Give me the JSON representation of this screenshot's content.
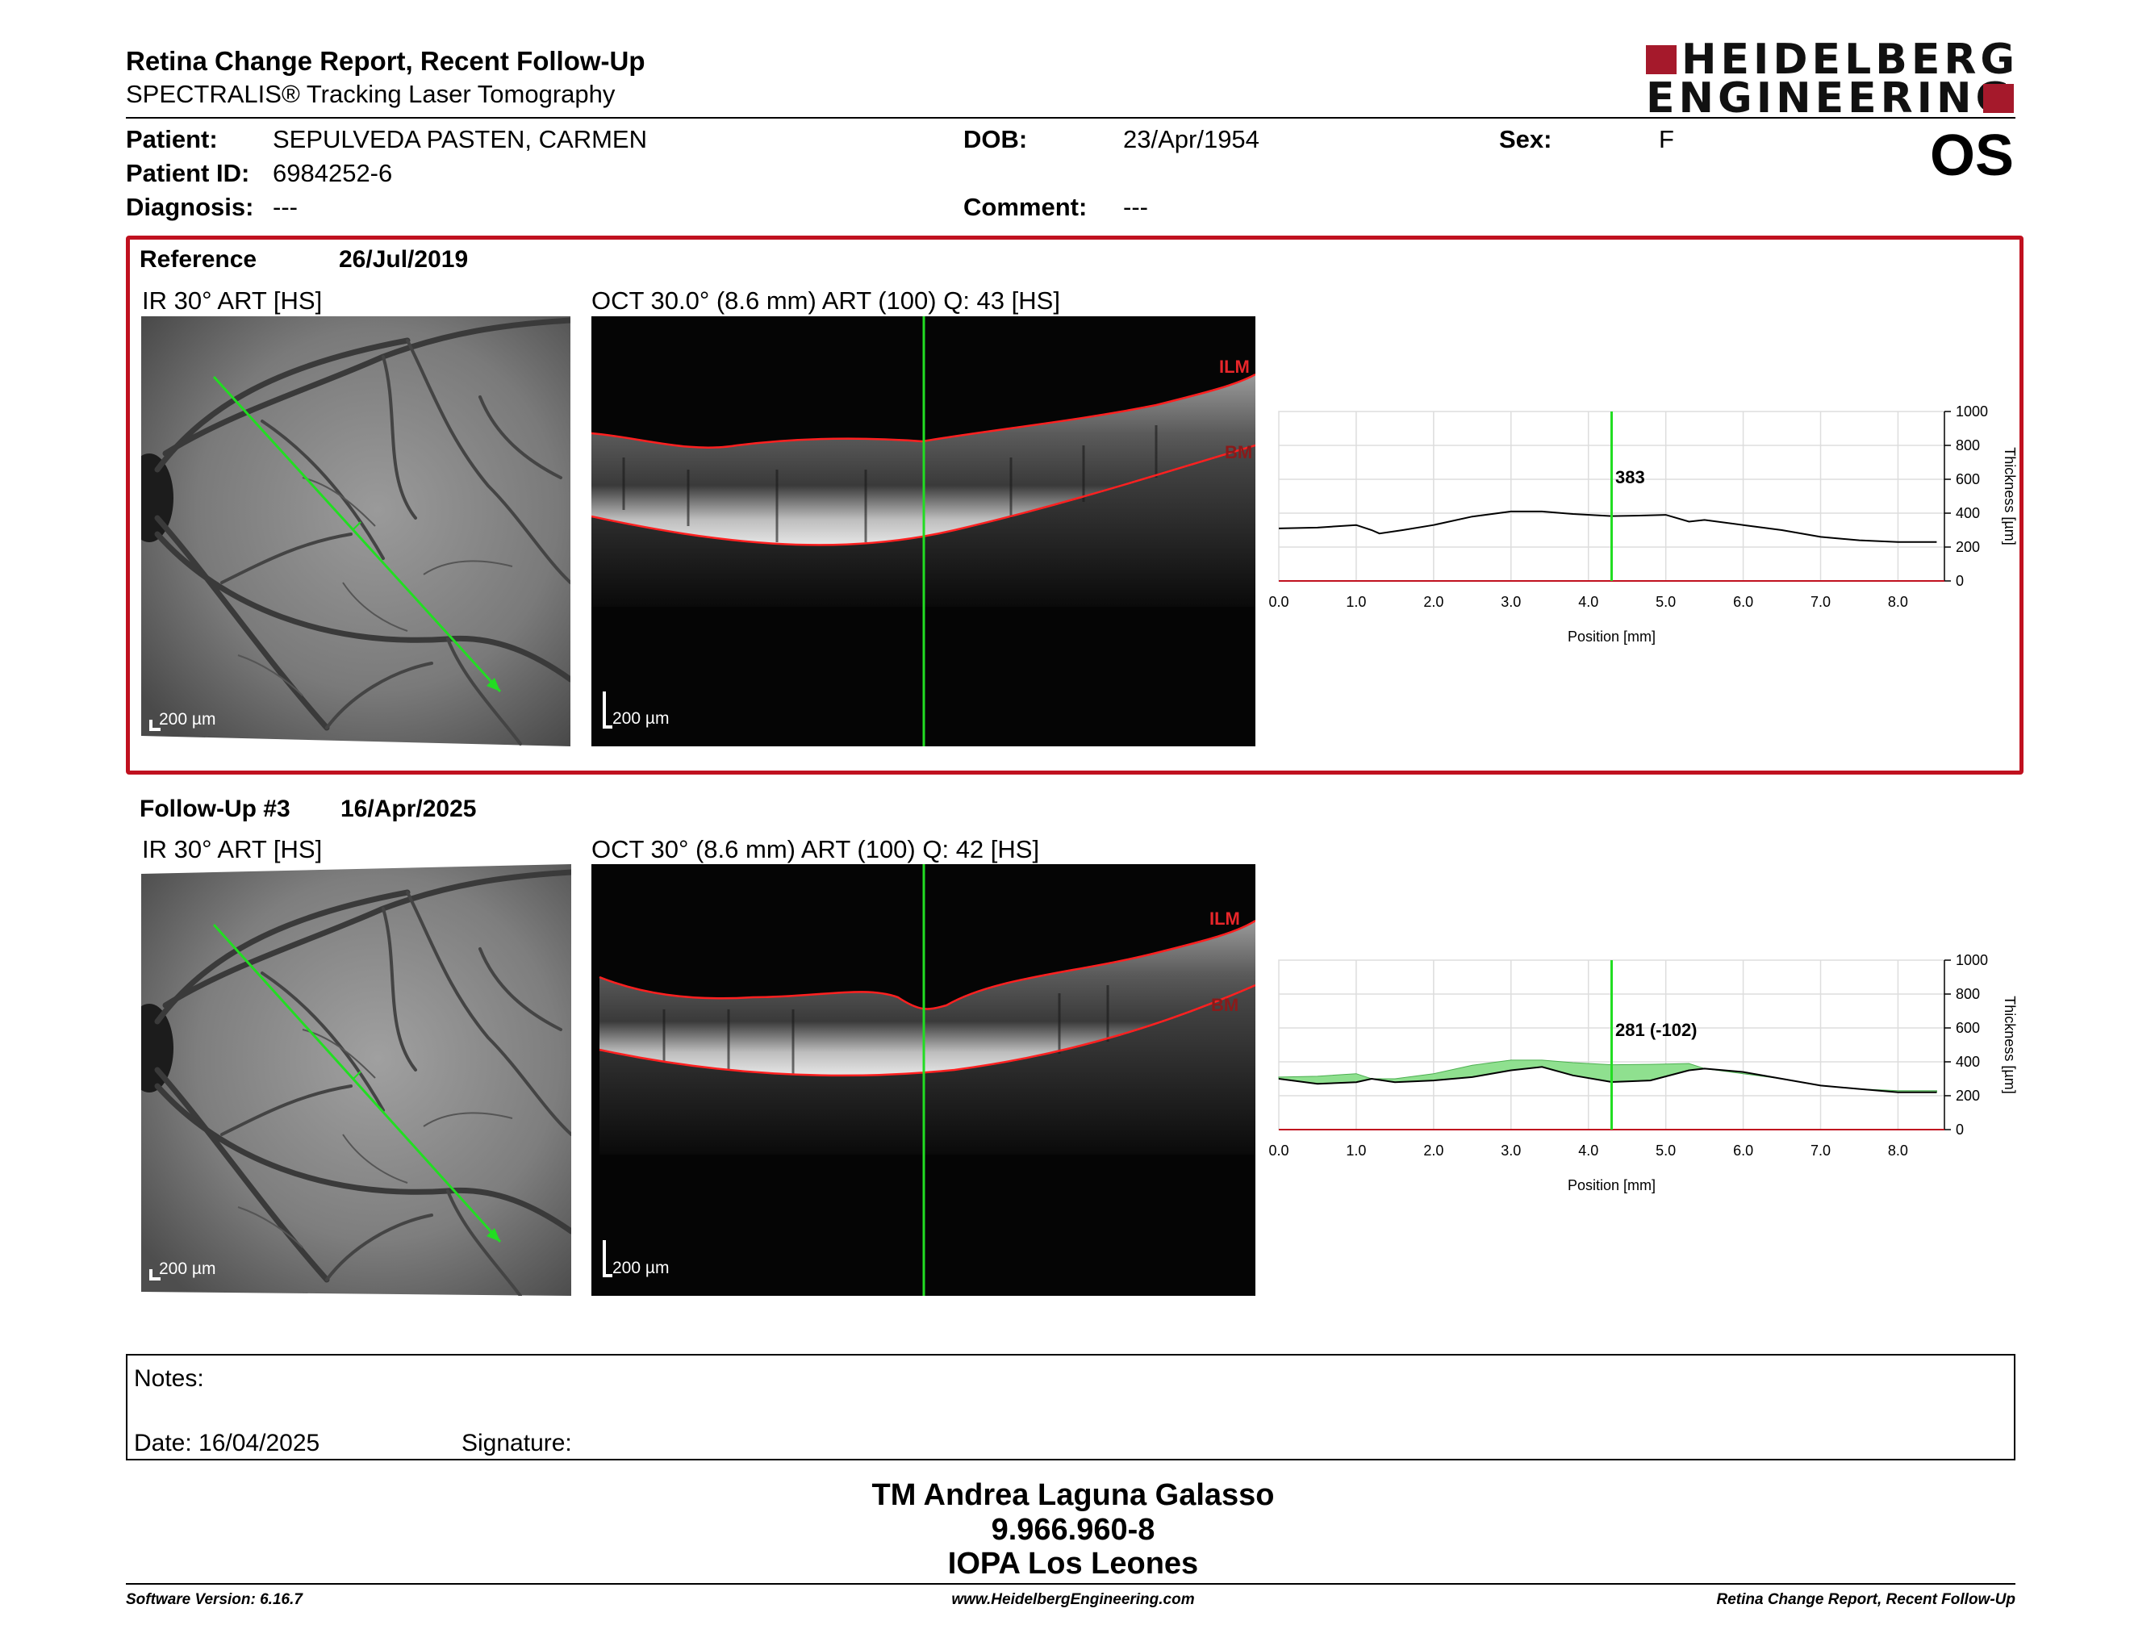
{
  "header": {
    "title": "Retina Change Report, Recent Follow-Up",
    "subtitle": "SPECTRALIS® Tracking Laser Tomography",
    "logo_line1": "HEIDELBERG",
    "logo_line2": "ENGINEERING",
    "eye": "OS"
  },
  "patient": {
    "patient_label": "Patient:",
    "patient_value": "SEPULVEDA PASTEN, CARMEN",
    "id_label": "Patient ID:",
    "id_value": "6984252-6",
    "diagnosis_label": "Diagnosis:",
    "diagnosis_value": "---",
    "dob_label": "DOB:",
    "dob_value": "23/Apr/1954",
    "comment_label": "Comment:",
    "comment_value": "---",
    "sex_label": "Sex:",
    "sex_value": "F"
  },
  "reference": {
    "label": "Reference",
    "date": "26/Jul/2019",
    "ir_caption": "IR 30° ART [HS]",
    "oct_caption": "OCT 30.0° (8.6 mm) ART (100) Q: 43 [HS]",
    "ir_scale": "200 µm",
    "oct_scale": "200 µm",
    "ilm": "ILM",
    "bm": "BM",
    "thickness_value": "383"
  },
  "followup": {
    "label": "Follow-Up #3",
    "date": "16/Apr/2025",
    "ir_caption": "IR 30° ART [HS]",
    "oct_caption": "OCT 30° (8.6 mm) ART (100) Q: 42 [HS]",
    "ir_scale": "200 µm",
    "oct_scale": "200 µm",
    "ilm": "ILM",
    "bm": "BM",
    "thickness_value": "281 (-102)"
  },
  "chart_data": [
    {
      "type": "line",
      "xlabel": "Position [mm]",
      "ylabel": "Thickness [µm]",
      "xlim": [
        0,
        8.6
      ],
      "ylim": [
        0,
        1000
      ],
      "x_ticks": [
        "0.0",
        "1.0",
        "2.0",
        "3.0",
        "4.0",
        "5.0",
        "6.0",
        "7.0",
        "8.0"
      ],
      "y_ticks": [
        "0",
        "200",
        "400",
        "600",
        "800",
        "1000"
      ],
      "cursor_x": 4.3,
      "cursor_label": "383",
      "series": [
        {
          "x": [
            0,
            0.5,
            1.0,
            1.2,
            1.3,
            1.6,
            2.0,
            2.5,
            3.0,
            3.4,
            3.8,
            4.3,
            4.6,
            5.0,
            5.3,
            5.5,
            6.0,
            6.5,
            7.0,
            7.5,
            8.0,
            8.5
          ],
          "y": [
            310,
            315,
            330,
            300,
            280,
            300,
            330,
            380,
            410,
            410,
            395,
            383,
            385,
            390,
            350,
            360,
            330,
            300,
            260,
            240,
            230,
            230
          ]
        }
      ]
    },
    {
      "type": "area",
      "xlabel": "Position [mm]",
      "ylabel": "Thickness [µm]",
      "xlim": [
        0,
        8.6
      ],
      "ylim": [
        0,
        1000
      ],
      "x_ticks": [
        "0.0",
        "1.0",
        "2.0",
        "3.0",
        "4.0",
        "5.0",
        "6.0",
        "7.0",
        "8.0"
      ],
      "y_ticks": [
        "0",
        "200",
        "400",
        "600",
        "800",
        "1000"
      ],
      "cursor_x": 4.3,
      "cursor_label": "281 (-102)",
      "series": [
        {
          "x": [
            0,
            0.5,
            1.0,
            1.2,
            1.5,
            2.0,
            2.5,
            3.0,
            3.4,
            3.8,
            4.3,
            4.8,
            5.3,
            5.5,
            6.0,
            6.5,
            7.0,
            7.5,
            8.0,
            8.5
          ],
          "y": [
            300,
            270,
            280,
            300,
            280,
            290,
            310,
            350,
            370,
            320,
            281,
            290,
            350,
            360,
            340,
            300,
            260,
            240,
            220,
            220
          ]
        },
        {
          "x": [
            0,
            0.5,
            1.0,
            1.2,
            1.5,
            2.0,
            2.5,
            3.0,
            3.4,
            3.8,
            4.3,
            4.8,
            5.3,
            5.5,
            6.0,
            6.5,
            7.0,
            7.5,
            8.0,
            8.5
          ],
          "y": [
            310,
            315,
            330,
            300,
            300,
            330,
            380,
            410,
            410,
            395,
            383,
            385,
            390,
            360,
            330,
            300,
            260,
            240,
            230,
            230
          ]
        }
      ]
    }
  ],
  "notes": {
    "notes_label": "Notes:",
    "date_label": "Date: 16/04/2025",
    "signature_label": "Signature:"
  },
  "signer": {
    "name": "TM Andrea Laguna Galasso",
    "rut": "9.966.960-8",
    "institution": "IOPA Los Leones"
  },
  "footer": {
    "software": "Software Version: 6.16.7",
    "website": "www.HeidelbergEngineering.com",
    "report_name": "Retina Change Report, Recent Follow-Up"
  },
  "colors": {
    "accent_red": "#c0111f",
    "logo_red": "#a5192b",
    "scan_green": "#22dd22",
    "change_fill": "#8fe08f"
  }
}
